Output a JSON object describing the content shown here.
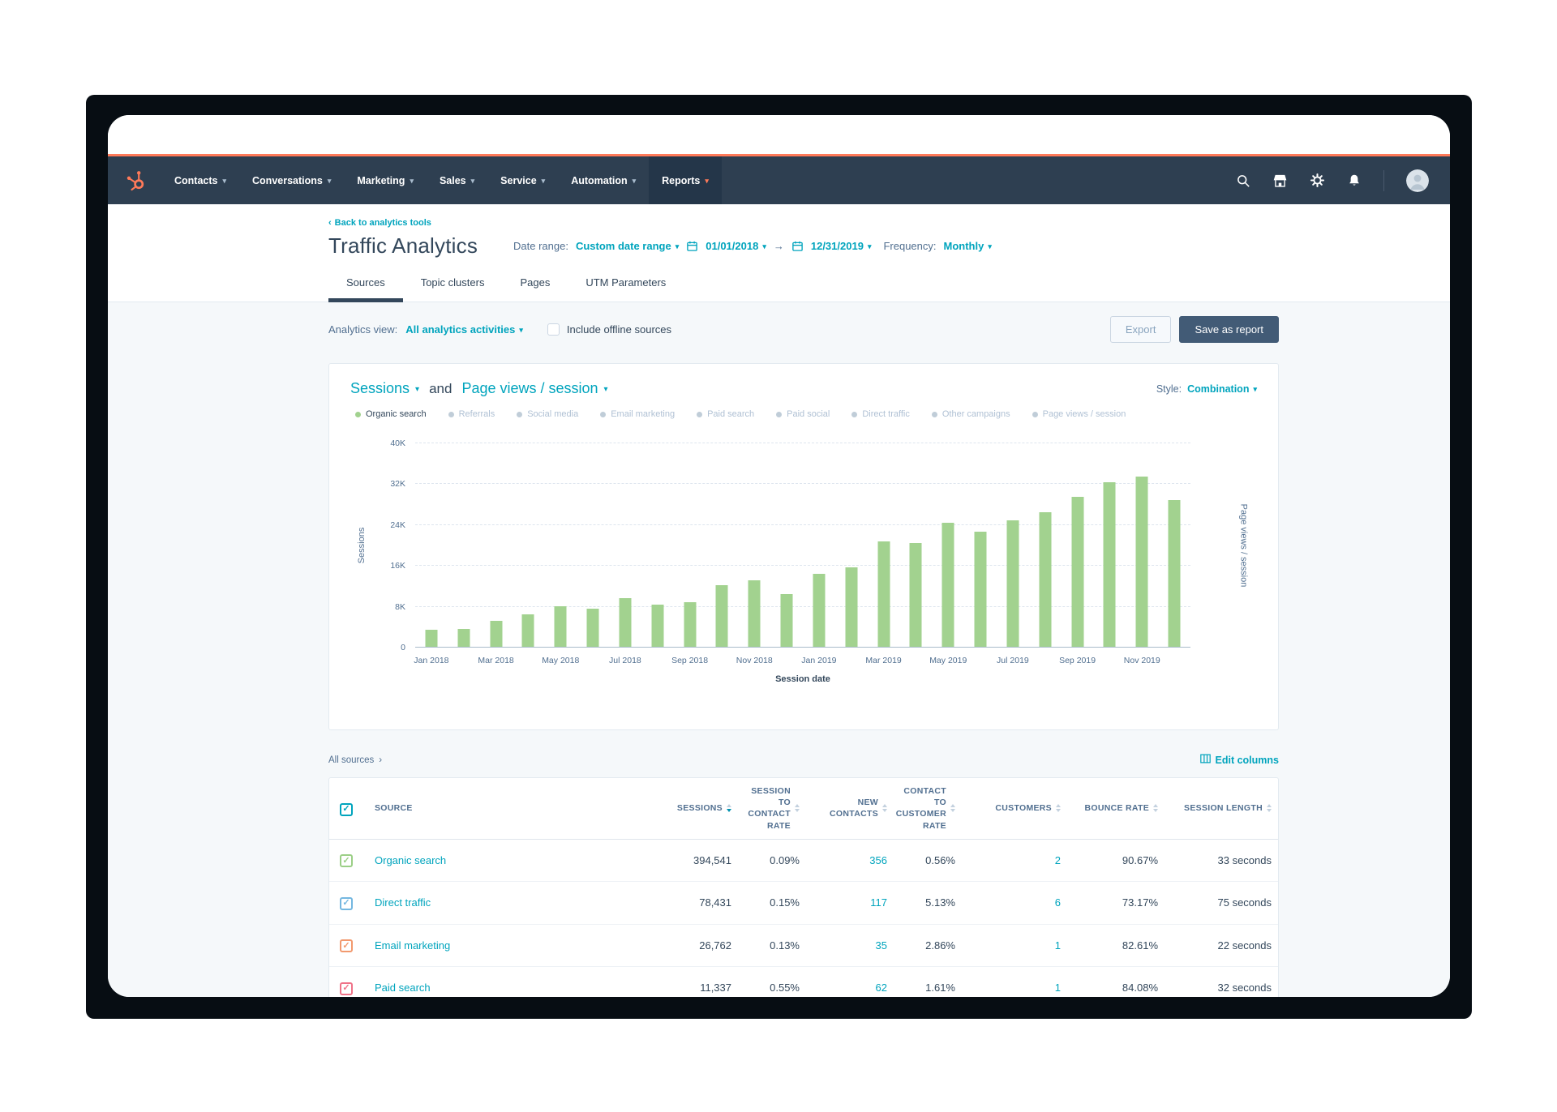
{
  "colors": {
    "accent_orange": "#ff7a59",
    "link_teal": "#00a4bd",
    "navy_text": "#33475b",
    "bar_green": "#a2d28f",
    "header_checkbox": "#00a4bd"
  },
  "icons": {
    "logo": "hubspot-sprocket-icon",
    "nav_right": [
      "search-icon",
      "marketplace-icon",
      "settings-icon",
      "notifications-icon"
    ],
    "avatar": "user-avatar",
    "date": "calendar-icon",
    "edit_columns": "table-grid-icon"
  },
  "nav": {
    "menu_items": [
      {
        "label": "Contacts",
        "active": false
      },
      {
        "label": "Conversations",
        "active": false
      },
      {
        "label": "Marketing",
        "active": false
      },
      {
        "label": "Sales",
        "active": false
      },
      {
        "label": "Service",
        "active": false
      },
      {
        "label": "Automation",
        "active": false
      },
      {
        "label": "Reports",
        "active": true
      }
    ]
  },
  "header": {
    "back_link": "Back to analytics tools",
    "title": "Traffic Analytics",
    "date_range_label": "Date range:",
    "date_range_value": "Custom date range",
    "date_start": "01/01/2018",
    "date_arrow": "→",
    "date_end": "12/31/2019",
    "frequency_label": "Frequency:",
    "frequency_value": "Monthly",
    "tabs": [
      {
        "label": "Sources",
        "active": true
      },
      {
        "label": "Topic clusters",
        "active": false
      },
      {
        "label": "Pages",
        "active": false
      },
      {
        "label": "UTM Parameters",
        "active": false
      }
    ]
  },
  "toolbar": {
    "analytics_view_label": "Analytics view:",
    "analytics_view_value": "All analytics activities",
    "include_offline_label": "Include offline sources",
    "export_label": "Export",
    "save_as_report_label": "Save as report"
  },
  "chart": {
    "metric1": "Sessions",
    "and_label": "and",
    "metric2": "Page views / session",
    "style_label": "Style:",
    "style_value": "Combination",
    "legend": [
      {
        "label": "Organic search",
        "color": "#a2d28f",
        "active": true
      },
      {
        "label": "Referrals",
        "color": "#c0cdd8",
        "active": false
      },
      {
        "label": "Social media",
        "color": "#c0cdd8",
        "active": false
      },
      {
        "label": "Email marketing",
        "color": "#c0cdd8",
        "active": false
      },
      {
        "label": "Paid search",
        "color": "#c0cdd8",
        "active": false
      },
      {
        "label": "Paid social",
        "color": "#c0cdd8",
        "active": false
      },
      {
        "label": "Direct traffic",
        "color": "#c0cdd8",
        "active": false
      },
      {
        "label": "Other campaigns",
        "color": "#c0cdd8",
        "active": false
      },
      {
        "label": "Page views / session",
        "color": "#c0cdd8",
        "active": false
      }
    ]
  },
  "chart_data": {
    "type": "bar",
    "title": "Sessions and Page views / session",
    "xlabel": "Session date",
    "ylabel": "Sessions",
    "y2label": "Page views / session",
    "ylim": [
      0,
      40000
    ],
    "yticks": [
      "0",
      "8K",
      "16K",
      "24K",
      "32K",
      "40K"
    ],
    "grid": true,
    "legend_position": "top",
    "bar_color": "#a2d28f",
    "x": [
      "Jan 2018",
      "Feb 2018",
      "Mar 2018",
      "Apr 2018",
      "May 2018",
      "Jun 2018",
      "Jul 2018",
      "Aug 2018",
      "Sep 2018",
      "Oct 2018",
      "Nov 2018",
      "Dec 2018",
      "Jan 2019",
      "Feb 2019",
      "Mar 2019",
      "Apr 2019",
      "May 2019",
      "Jun 2019",
      "Jul 2019",
      "Aug 2019",
      "Sep 2019",
      "Oct 2019",
      "Nov 2019",
      "Dec 2019"
    ],
    "series": [
      {
        "name": "Organic search",
        "values": [
          3300,
          3500,
          5100,
          6400,
          7900,
          7400,
          9600,
          8200,
          8700,
          12100,
          13000,
          10300,
          14300,
          15500,
          20700,
          20300,
          24300,
          22500,
          24800,
          26300,
          29300,
          32300,
          33300,
          28700
        ]
      }
    ]
  },
  "table": {
    "all_sources_label": "All sources",
    "edit_columns_label": "Edit columns",
    "columns": [
      {
        "key": "source",
        "label": "SOURCE",
        "sortable": false,
        "link": true
      },
      {
        "key": "sessions",
        "label": "SESSIONS",
        "sortable": true,
        "sorted": "desc",
        "link": false
      },
      {
        "key": "session_to_contact_rate",
        "label": "SESSION TO CONTACT RATE",
        "sortable": true,
        "link": false
      },
      {
        "key": "new_contacts",
        "label": "NEW CONTACTS",
        "sortable": true,
        "link": true
      },
      {
        "key": "contact_to_customer_rate",
        "label": "CONTACT TO CUSTOMER RATE",
        "sortable": true,
        "link": false
      },
      {
        "key": "customers",
        "label": "CUSTOMERS",
        "sortable": true,
        "link": true
      },
      {
        "key": "bounce_rate",
        "label": "BOUNCE RATE",
        "sortable": true,
        "link": false
      },
      {
        "key": "session_length",
        "label": "SESSION LENGTH",
        "sortable": true,
        "link": false
      }
    ],
    "rows": [
      {
        "check_color": "#9bcf86",
        "source": "Organic search",
        "sessions": "394,541",
        "session_to_contact_rate": "0.09%",
        "new_contacts": "356",
        "contact_to_customer_rate": "0.56%",
        "customers": "2",
        "bounce_rate": "90.67%",
        "session_length": "33 seconds"
      },
      {
        "check_color": "#74b7e0",
        "source": "Direct traffic",
        "sessions": "78,431",
        "session_to_contact_rate": "0.15%",
        "new_contacts": "117",
        "contact_to_customer_rate": "5.13%",
        "customers": "6",
        "bounce_rate": "73.17%",
        "session_length": "75 seconds"
      },
      {
        "check_color": "#f2996e",
        "source": "Email marketing",
        "sessions": "26,762",
        "session_to_contact_rate": "0.13%",
        "new_contacts": "35",
        "contact_to_customer_rate": "2.86%",
        "customers": "1",
        "bounce_rate": "82.61%",
        "session_length": "22 seconds"
      },
      {
        "check_color": "#ef7288",
        "source": "Paid search",
        "sessions": "11,337",
        "session_to_contact_rate": "0.55%",
        "new_contacts": "62",
        "contact_to_customer_rate": "1.61%",
        "customers": "1",
        "bounce_rate": "84.08%",
        "session_length": "32 seconds"
      }
    ]
  }
}
